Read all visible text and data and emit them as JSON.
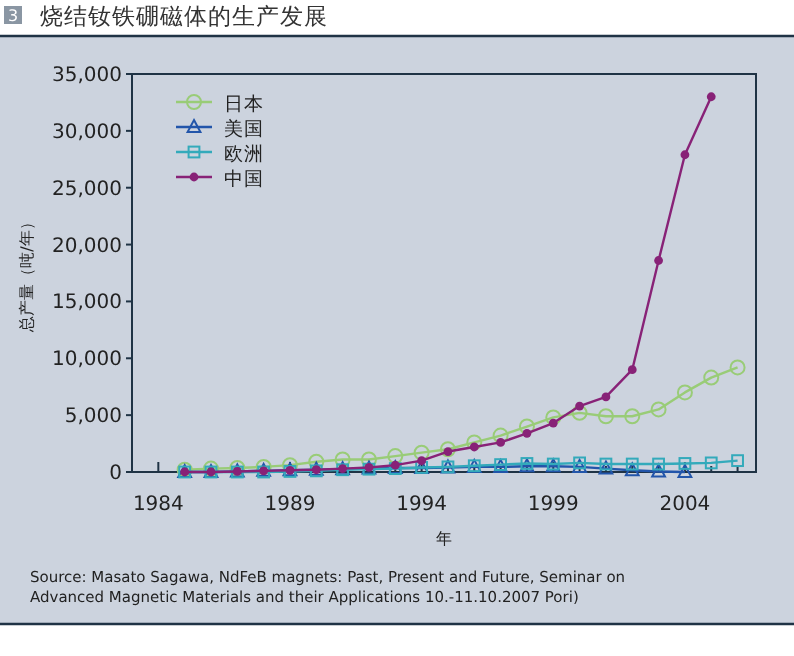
{
  "chart_data": {
    "type": "line",
    "title": "烧结钕铁硼磁体的生产发展",
    "xlabel": "年",
    "ylabel": "总产量（吨/年）",
    "annotations": [
      "3",
      "Source: Masato Sagawa, NdFeB magnets: Past, Present and Future, Seminar on Advanced Magnetic Materials and their Applications 10.-11.10.2007 Pori)"
    ],
    "xlim": [
      1983,
      2006.7
    ],
    "ylim": [
      0,
      35000
    ],
    "xticks": [
      1984,
      {
        "value": 1985,
        "label": null
      },
      {
        "value": 1986,
        "label": null
      },
      {
        "value": 1987,
        "label": null
      },
      {
        "value": 1988,
        "label": null
      },
      1989,
      {
        "value": 1990,
        "label": null
      },
      {
        "value": 1991,
        "label": null
      },
      {
        "value": 1992,
        "label": null
      },
      {
        "value": 1993,
        "label": null
      },
      1994,
      {
        "value": 1995,
        "label": null
      },
      {
        "value": 1996,
        "label": null
      },
      {
        "value": 1997,
        "label": null
      },
      {
        "value": 1998,
        "label": null
      },
      1999,
      {
        "value": 2000,
        "label": null
      },
      {
        "value": 2001,
        "label": null
      },
      {
        "value": 2002,
        "label": null
      },
      {
        "value": 2003,
        "label": null
      },
      2004,
      {
        "value": 2005,
        "label": null
      },
      {
        "value": 2006,
        "label": null
      }
    ],
    "yticks": [
      0,
      {
        "value": 5000,
        "label": "5,000"
      },
      {
        "value": 10000,
        "label": "10,000"
      },
      {
        "value": 15000,
        "label": "15,000"
      },
      {
        "value": 20000,
        "label": "20,000"
      },
      {
        "value": 25000,
        "label": "25,000"
      },
      {
        "value": 30000,
        "label": "30,000"
      },
      {
        "value": 35000,
        "label": "35,000"
      }
    ],
    "legend": "top left",
    "grid": false,
    "series": [
      {
        "name": "日本",
        "color": "#99cc77",
        "marker": "circle",
        "x": [
          1985,
          1986,
          1987,
          1988,
          1989,
          1990,
          1991,
          1992,
          1993,
          1994,
          1995,
          1996,
          1997,
          1998,
          1999,
          2000,
          2001,
          2002,
          2003,
          2004,
          2005,
          2006
        ],
        "values": [
          200,
          300,
          350,
          450,
          600,
          900,
          1100,
          1100,
          1400,
          1700,
          2000,
          2600,
          3200,
          4000,
          4800,
          5200,
          4900,
          4900,
          5500,
          7000,
          8300,
          9200
        ]
      },
      {
        "name": "美国",
        "color": "#2255aa",
        "marker": "triangle",
        "x": [
          1985,
          1986,
          1987,
          1988,
          1989,
          1990,
          1991,
          1992,
          1993,
          1994,
          1995,
          1996,
          1997,
          1998,
          1999,
          2000,
          2001,
          2002,
          2003,
          2004
        ],
        "values": [
          0,
          0,
          50,
          100,
          150,
          200,
          250,
          300,
          350,
          350,
          400,
          450,
          450,
          500,
          500,
          450,
          300,
          150,
          50,
          0
        ]
      },
      {
        "name": "欧洲",
        "color": "#33aabb",
        "marker": "square",
        "x": [
          1985,
          1986,
          1987,
          1988,
          1989,
          1990,
          1991,
          1992,
          1993,
          1994,
          1995,
          1996,
          1997,
          1998,
          1999,
          2000,
          2001,
          2002,
          2003,
          2004,
          2005,
          2006
        ],
        "values": [
          0,
          0,
          0,
          0,
          50,
          100,
          200,
          250,
          300,
          400,
          450,
          550,
          650,
          750,
          700,
          800,
          700,
          700,
          700,
          750,
          800,
          1000
        ]
      },
      {
        "name": "中国",
        "color": "#882277",
        "marker": "dot",
        "x": [
          1985,
          1986,
          1987,
          1988,
          1989,
          1990,
          1991,
          1992,
          1993,
          1994,
          1995,
          1996,
          1997,
          1998,
          1999,
          2000,
          2001,
          2002,
          2003,
          2004,
          2005
        ],
        "values": [
          0,
          0,
          50,
          100,
          150,
          200,
          300,
          400,
          600,
          1000,
          1800,
          2200,
          2600,
          3400,
          4300,
          5800,
          6600,
          9000,
          18600,
          27900,
          33000
        ]
      }
    ]
  }
}
